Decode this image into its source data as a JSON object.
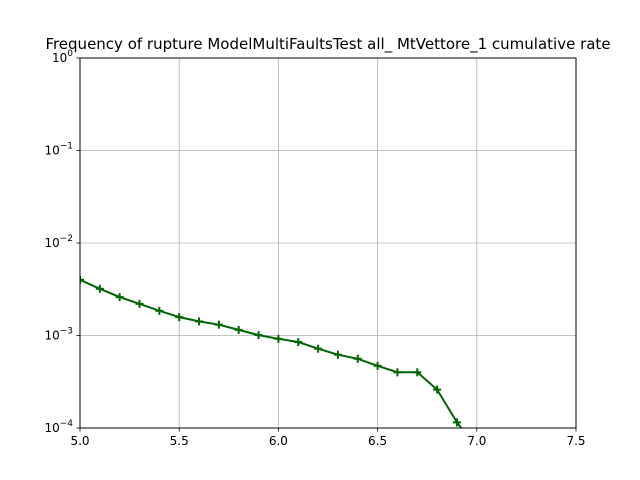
{
  "chart_data": {
    "type": "line",
    "title": "Frequency of rupture ModelMultiFaultsTest all_ MtVettore_1 cumulative rate",
    "xlabel": "",
    "ylabel": "",
    "xlim": [
      5.0,
      7.5
    ],
    "ylim": [
      0.0001,
      1
    ],
    "yscale": "log",
    "grid": true,
    "x_ticks": [
      "5.0",
      "5.5",
      "6.0",
      "6.5",
      "7.0",
      "7.5"
    ],
    "x_tick_values": [
      5.0,
      5.5,
      6.0,
      6.5,
      7.0,
      7.5
    ],
    "y_ticks": [
      {
        "base": "10",
        "exp": "0",
        "value": 1
      },
      {
        "base": "10",
        "exp": "−1",
        "value": 0.1
      },
      {
        "base": "10",
        "exp": "−2",
        "value": 0.01
      },
      {
        "base": "10",
        "exp": "−3",
        "value": 0.001
      },
      {
        "base": "10",
        "exp": "−4",
        "value": 0.0001
      }
    ],
    "series": [
      {
        "color": "#006400",
        "marker": "plus",
        "x": [
          5.0,
          5.1,
          5.2,
          5.3,
          5.4,
          5.5,
          5.6,
          5.7,
          5.8,
          5.9,
          6.0,
          6.1,
          6.2,
          6.3,
          6.4,
          6.5,
          6.6,
          6.7,
          6.8,
          6.9,
          7.0
        ],
        "y": [
          0.004,
          0.0032,
          0.0026,
          0.0022,
          0.00185,
          0.00158,
          0.00142,
          0.00131,
          0.00115,
          0.00101,
          0.00092,
          0.00085,
          0.00072,
          0.00062,
          0.00056,
          0.00047,
          0.0004,
          0.0004,
          0.00026,
          0.000115,
          6e-05
        ]
      }
    ]
  }
}
